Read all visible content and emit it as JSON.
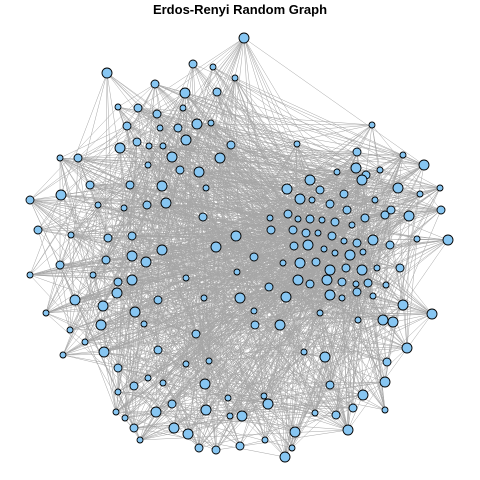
{
  "title": "Erdos-Renyi Random Graph",
  "colors": {
    "background": "#ffffff",
    "edge": "#a6a6a6",
    "node_fill": "#87c6f2",
    "node_stroke": "#000000"
  }
}
